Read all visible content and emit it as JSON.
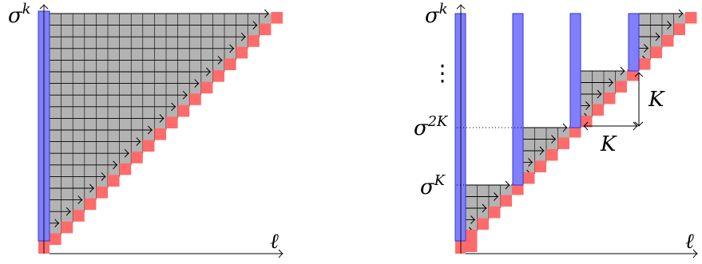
{
  "left": {
    "y_label_base": "σ",
    "y_label_sup": "k",
    "x_label": "ℓ"
  },
  "right": {
    "y_label_top_base": "σ",
    "y_label_top_sup": "k",
    "y_label_2k_base": "σ",
    "y_label_2k_sup": "2K",
    "y_label_k_base": "σ",
    "y_label_k_sup": "K",
    "vdots": "⋮",
    "bracket_vertical": "K",
    "bracket_horizontal": "K",
    "x_label": "ℓ"
  },
  "colors": {
    "blue_fill": "#8080ff",
    "blue_stroke": "#3333cc",
    "red_fill": "#ff6b6b",
    "gray_fill": "#b3b3b3",
    "line": "#000000"
  }
}
